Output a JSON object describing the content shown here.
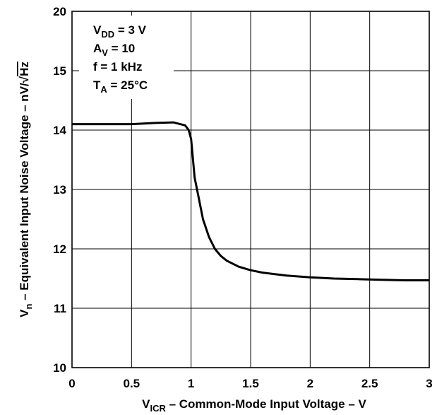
{
  "chart_data": {
    "type": "line",
    "title": "",
    "xlabel": {
      "main": "V",
      "sub": "ICR",
      "rest": " – Common-Mode Input Voltage – V"
    },
    "ylabel": {
      "main": "V",
      "sub": "n",
      "rest": " – Equivalent Input Noise Voltage – nV/",
      "sqrt": "Hz"
    },
    "xlim": [
      0,
      3
    ],
    "ylim_axis": [
      10,
      20
    ],
    "x_ticks": [
      "0",
      "0.5",
      "1",
      "1.5",
      "2",
      "2.5",
      "3"
    ],
    "x_tick_values": [
      0,
      0.5,
      1,
      1.5,
      2,
      2.5,
      3
    ],
    "y_ticks": [
      "10",
      "11",
      "12",
      "13",
      "14",
      "15",
      "20"
    ],
    "grid": true,
    "annotation": [
      {
        "main": "V",
        "sub": "DD",
        "rest": " = 3 V"
      },
      {
        "main": "A",
        "sub": "V",
        "rest": " = 10"
      },
      {
        "main": "f = 1 kHz",
        "sub": "",
        "rest": ""
      },
      {
        "main": "T",
        "sub": "A",
        "rest": " = 25°C"
      }
    ],
    "series": [
      {
        "x": [
          0,
          0.2,
          0.5,
          0.7,
          0.85,
          0.95,
          0.98,
          1.0,
          1.03,
          1.06,
          1.1,
          1.15,
          1.2,
          1.25,
          1.3,
          1.4,
          1.5,
          1.6,
          1.8,
          2.0,
          2.2,
          2.4,
          2.6,
          2.8,
          3.0
        ],
        "y": [
          14.1,
          14.1,
          14.1,
          14.12,
          14.13,
          14.08,
          14.0,
          13.85,
          13.2,
          12.9,
          12.5,
          12.2,
          12.0,
          11.88,
          11.8,
          11.7,
          11.64,
          11.6,
          11.55,
          11.52,
          11.5,
          11.49,
          11.48,
          11.47,
          11.47
        ]
      }
    ]
  }
}
